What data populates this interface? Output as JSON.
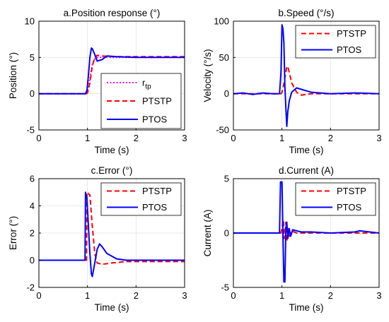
{
  "chart_data": [
    {
      "type": "line",
      "title": "a.Position response (°)",
      "xlabel": "Time (s)",
      "ylabel": "Position (°)",
      "xlim": [
        0,
        3
      ],
      "ylim": [
        -5,
        10
      ],
      "xticks": [
        0,
        1,
        2,
        3
      ],
      "yticks": [
        -5,
        0,
        5,
        10
      ],
      "legend": {
        "position": "right",
        "entries": [
          "rtp",
          "PTSTP",
          "PTOS"
        ]
      },
      "series": [
        {
          "name": "r",
          "name_sub": "tp",
          "color": "#ff00ff",
          "style": "dotted",
          "x": [
            0,
            0.98,
            1.0,
            1.05,
            1.1,
            1.15,
            1.2,
            1.3,
            3.0
          ],
          "y": [
            0,
            0,
            0.3,
            2.0,
            4.0,
            4.8,
            5.0,
            5.0,
            5.0
          ]
        },
        {
          "name": "PTSTP",
          "color": "#ff0000",
          "style": "dashed",
          "x": [
            0,
            0.98,
            1.0,
            1.05,
            1.1,
            1.15,
            1.2,
            1.3,
            1.5,
            1.8,
            3.0
          ],
          "y": [
            0,
            0,
            0.1,
            1.5,
            3.8,
            5.0,
            5.3,
            5.2,
            5.1,
            5.1,
            5.1
          ]
        },
        {
          "name": "PTOS",
          "color": "#0000ff",
          "style": "solid",
          "x": [
            0,
            0.96,
            0.99,
            1.02,
            1.05,
            1.08,
            1.1,
            1.15,
            1.2,
            1.3,
            1.4,
            1.6,
            2.0,
            3.0
          ],
          "y": [
            0,
            0,
            0.5,
            2.5,
            5.0,
            6.3,
            6.2,
            5.4,
            4.5,
            4.7,
            5.2,
            5.1,
            5.0,
            5.0
          ]
        }
      ]
    },
    {
      "type": "line",
      "title": "b.Speed (°/s)",
      "xlabel": "Time (s)",
      "ylabel": "Velocity (°/s)",
      "xlim": [
        0,
        3
      ],
      "ylim": [
        -50,
        100
      ],
      "xticks": [
        0,
        1,
        2,
        3
      ],
      "yticks": [
        -50,
        0,
        50,
        100
      ],
      "legend": {
        "position": "top-right",
        "entries": [
          "PTSTP",
          "PTOS"
        ]
      },
      "series": [
        {
          "name": "PTSTP",
          "color": "#ff0000",
          "style": "dashed",
          "x": [
            0,
            0.98,
            1.0,
            1.03,
            1.06,
            1.1,
            1.13,
            1.2,
            1.3,
            1.4,
            1.6,
            3.0
          ],
          "y": [
            0,
            0,
            2,
            10,
            22,
            38,
            35,
            15,
            2,
            -2,
            0,
            0
          ]
        },
        {
          "name": "PTOS",
          "color": "#0000ff",
          "style": "solid",
          "x": [
            0,
            0.2,
            0.4,
            0.6,
            0.8,
            0.95,
            0.98,
            1.0,
            1.02,
            1.04,
            1.06,
            1.08,
            1.1,
            1.12,
            1.15,
            1.2,
            1.3,
            1.4,
            1.6,
            2.0,
            2.5,
            3.0
          ],
          "y": [
            0,
            1,
            -1,
            1,
            0,
            0,
            30,
            95,
            90,
            70,
            10,
            -20,
            -45,
            -25,
            -10,
            2,
            8,
            6,
            2,
            0,
            1,
            0
          ]
        }
      ]
    },
    {
      "type": "line",
      "title": "c.Error (°)",
      "xlabel": "Time (s)",
      "ylabel": "Error (°)",
      "xlim": [
        0,
        3
      ],
      "ylim": [
        -2,
        6
      ],
      "xticks": [
        0,
        1,
        2,
        3
      ],
      "yticks": [
        -2,
        0,
        2,
        4,
        6
      ],
      "legend": {
        "position": "top-right",
        "entries": [
          "PTSTP",
          "PTOS"
        ]
      },
      "series": [
        {
          "name": "PTSTP",
          "color": "#ff0000",
          "style": "dashed",
          "x": [
            0,
            0.98,
            0.99,
            1.05,
            1.1,
            1.15,
            1.2,
            1.3,
            1.5,
            1.8,
            3.0
          ],
          "y": [
            0,
            0,
            5.0,
            4.8,
            2.5,
            0.5,
            -0.2,
            -0.3,
            -0.2,
            -0.1,
            -0.1
          ]
        },
        {
          "name": "PTOS",
          "color": "#0000ff",
          "style": "solid",
          "x": [
            0,
            0.95,
            0.96,
            0.99,
            1.02,
            1.05,
            1.08,
            1.1,
            1.15,
            1.2,
            1.25,
            1.3,
            1.4,
            1.6,
            1.8,
            2.0,
            3.0
          ],
          "y": [
            0,
            0,
            5.0,
            4.5,
            2.5,
            0.5,
            -1.0,
            -1.2,
            -0.2,
            0.8,
            1.2,
            1.0,
            0.5,
            0.1,
            0,
            0,
            0
          ]
        }
      ]
    },
    {
      "type": "line",
      "title": "d.Current (A)",
      "xlabel": "Time (s)",
      "ylabel": "Current (A)",
      "xlim": [
        0,
        3
      ],
      "ylim": [
        -5,
        5
      ],
      "xticks": [
        0,
        1,
        2,
        3
      ],
      "yticks": [
        -5,
        0,
        5
      ],
      "legend": {
        "position": "top-right",
        "entries": [
          "PTSTP",
          "PTOS"
        ]
      },
      "series": [
        {
          "name": "PTSTP",
          "color": "#ff0000",
          "style": "dashed",
          "x": [
            0,
            0.98,
            1.0,
            1.03,
            1.05,
            1.08,
            1.1,
            1.13,
            1.15,
            1.2,
            1.3,
            1.5,
            3.0
          ],
          "y": [
            0,
            0,
            0.5,
            1.2,
            -0.5,
            1.0,
            -0.8,
            0.6,
            -0.3,
            0.2,
            0,
            0,
            0
          ]
        },
        {
          "name": "PTOS",
          "color": "#0000ff",
          "style": "solid",
          "x": [
            0,
            0.95,
            0.97,
            1.0,
            1.02,
            1.04,
            1.06,
            1.08,
            1.1,
            1.12,
            1.15,
            1.18,
            1.22,
            1.3,
            1.4,
            1.6,
            2.0,
            2.5,
            2.6,
            3.0
          ],
          "y": [
            0,
            0,
            4.7,
            4.7,
            0,
            -4.5,
            -4.5,
            0.5,
            1.0,
            -0.5,
            0.4,
            -0.3,
            0.3,
            0.2,
            0.1,
            0.1,
            0,
            0.1,
            0.2,
            0
          ]
        }
      ]
    }
  ]
}
